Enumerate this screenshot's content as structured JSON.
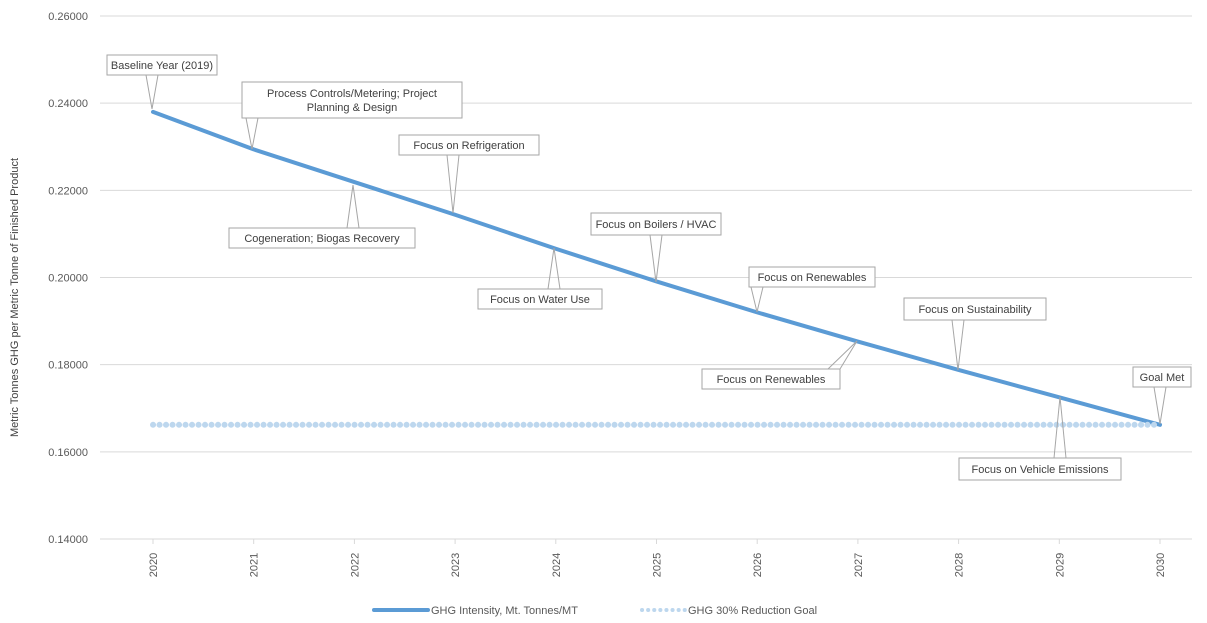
{
  "chart_data": {
    "type": "line",
    "title": "",
    "xlabel": "",
    "ylabel": "Metric Tonnes GHG per Metric Tonne of Finished Product",
    "ylim": [
      0.14,
      0.26
    ],
    "y_ticks": [
      "0.14000",
      "0.16000",
      "0.18000",
      "0.20000",
      "0.22000",
      "0.24000",
      "0.26000"
    ],
    "y_tick_values": [
      0.14,
      0.16,
      0.18,
      0.2,
      0.22,
      0.24,
      0.26
    ],
    "categories": [
      "2020",
      "2021",
      "2022",
      "2023",
      "2024",
      "2025",
      "2026",
      "2027",
      "2028",
      "2029",
      "2030"
    ],
    "grid": true,
    "legend_position": "bottom",
    "series": [
      {
        "name": "GHG Intensity, Mt. Tonnes/MT",
        "color": "#5b9bd5",
        "style": "solid",
        "values": [
          0.238,
          0.2294,
          0.2219,
          0.2144,
          0.2066,
          0.1991,
          0.192,
          0.1853,
          0.1788,
          0.1725,
          0.1662
        ]
      },
      {
        "name": "GHG 30% Reduction Goal",
        "color": "#bdd7ee",
        "style": "dotted",
        "values": [
          0.1662,
          0.1662,
          0.1662,
          0.1662,
          0.1662,
          0.1662,
          0.1662,
          0.1662,
          0.1662,
          0.1662,
          0.1662
        ]
      }
    ],
    "annotations": [
      {
        "lines": [
          "Baseline Year (2019)"
        ],
        "x_index": 0
      },
      {
        "lines": [
          "Process Controls/Metering; Project",
          "Planning & Design"
        ],
        "x_index": 1
      },
      {
        "lines": [
          "Cogeneration; Biogas Recovery"
        ],
        "x_index": 2
      },
      {
        "lines": [
          "Focus on Refrigeration"
        ],
        "x_index": 3
      },
      {
        "lines": [
          "Focus on Water Use"
        ],
        "x_index": 4
      },
      {
        "lines": [
          "Focus on Boilers / HVAC"
        ],
        "x_index": 5
      },
      {
        "lines": [
          "Focus on Renewables"
        ],
        "x_index": 6
      },
      {
        "lines": [
          "Focus on Renewables"
        ],
        "x_index": 7
      },
      {
        "lines": [
          "Focus on Sustainability"
        ],
        "x_index": 8
      },
      {
        "lines": [
          "Focus on Vehicle Emissions"
        ],
        "x_index": 9
      },
      {
        "lines": [
          "Goal Met"
        ],
        "x_index": 10
      }
    ]
  }
}
